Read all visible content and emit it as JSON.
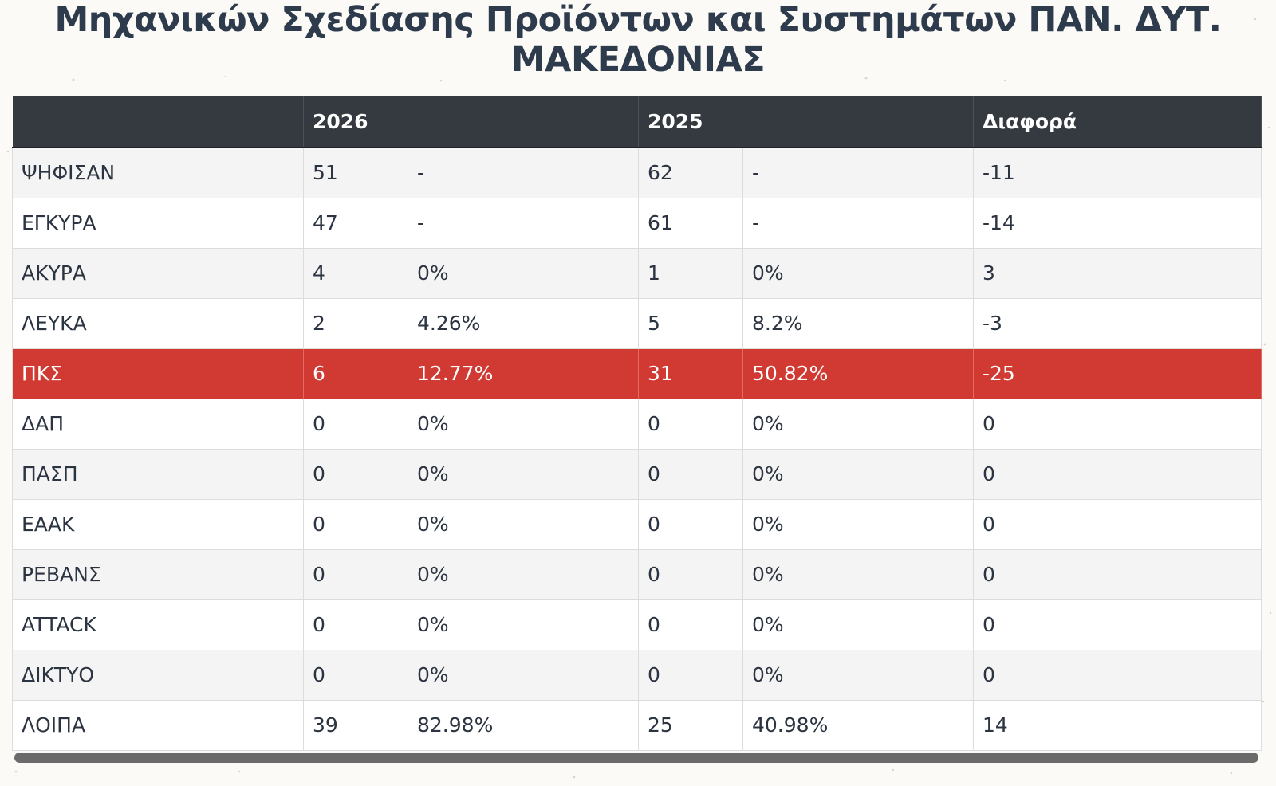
{
  "title": {
    "line1": "Μηχανικών Σχεδίασης Προϊόντων και Συστημάτων ΠΑΝ. ΔΥΤ.",
    "line2": "ΜΑΚΕΔΟΝΙΑΣ"
  },
  "table": {
    "headers": [
      "",
      "2026",
      "",
      "2025",
      "",
      "Διαφορά"
    ],
    "highlight_color": "#d13a32",
    "header_color": "#343a40",
    "rows": [
      {
        "label": "ΨΗΦΙΣΑΝ",
        "v2026": "51",
        "p2026": "-",
        "v2025": "62",
        "p2025": "-",
        "diff": "-11",
        "highlight": false
      },
      {
        "label": "ΕΓΚΥΡΑ",
        "v2026": "47",
        "p2026": "-",
        "v2025": "61",
        "p2025": "-",
        "diff": "-14",
        "highlight": false
      },
      {
        "label": "ΑΚΥΡΑ",
        "v2026": "4",
        "p2026": "0%",
        "v2025": "1",
        "p2025": "0%",
        "diff": "3",
        "highlight": false
      },
      {
        "label": "ΛΕΥΚΑ",
        "v2026": "2",
        "p2026": "4.26%",
        "v2025": "5",
        "p2025": "8.2%",
        "diff": "-3",
        "highlight": false
      },
      {
        "label": "ΠΚΣ",
        "v2026": "6",
        "p2026": "12.77%",
        "v2025": "31",
        "p2025": "50.82%",
        "diff": "-25",
        "highlight": true
      },
      {
        "label": "ΔΑΠ",
        "v2026": "0",
        "p2026": "0%",
        "v2025": "0",
        "p2025": "0%",
        "diff": "0",
        "highlight": false
      },
      {
        "label": "ΠΑΣΠ",
        "v2026": "0",
        "p2026": "0%",
        "v2025": "0",
        "p2025": "0%",
        "diff": "0",
        "highlight": false
      },
      {
        "label": "ΕΑΑΚ",
        "v2026": "0",
        "p2026": "0%",
        "v2025": "0",
        "p2025": "0%",
        "diff": "0",
        "highlight": false
      },
      {
        "label": "ΡΕΒΑΝΣ",
        "v2026": "0",
        "p2026": "0%",
        "v2025": "0",
        "p2025": "0%",
        "diff": "0",
        "highlight": false
      },
      {
        "label": "ATTACK",
        "v2026": "0",
        "p2026": "0%",
        "v2025": "0",
        "p2025": "0%",
        "diff": "0",
        "highlight": false
      },
      {
        "label": "ΔΙΚΤΥΟ",
        "v2026": "0",
        "p2026": "0%",
        "v2025": "0",
        "p2025": "0%",
        "diff": "0",
        "highlight": false
      },
      {
        "label": "ΛΟΙΠΑ",
        "v2026": "39",
        "p2026": "82.98%",
        "v2025": "25",
        "p2025": "40.98%",
        "diff": "14",
        "highlight": false
      }
    ]
  }
}
